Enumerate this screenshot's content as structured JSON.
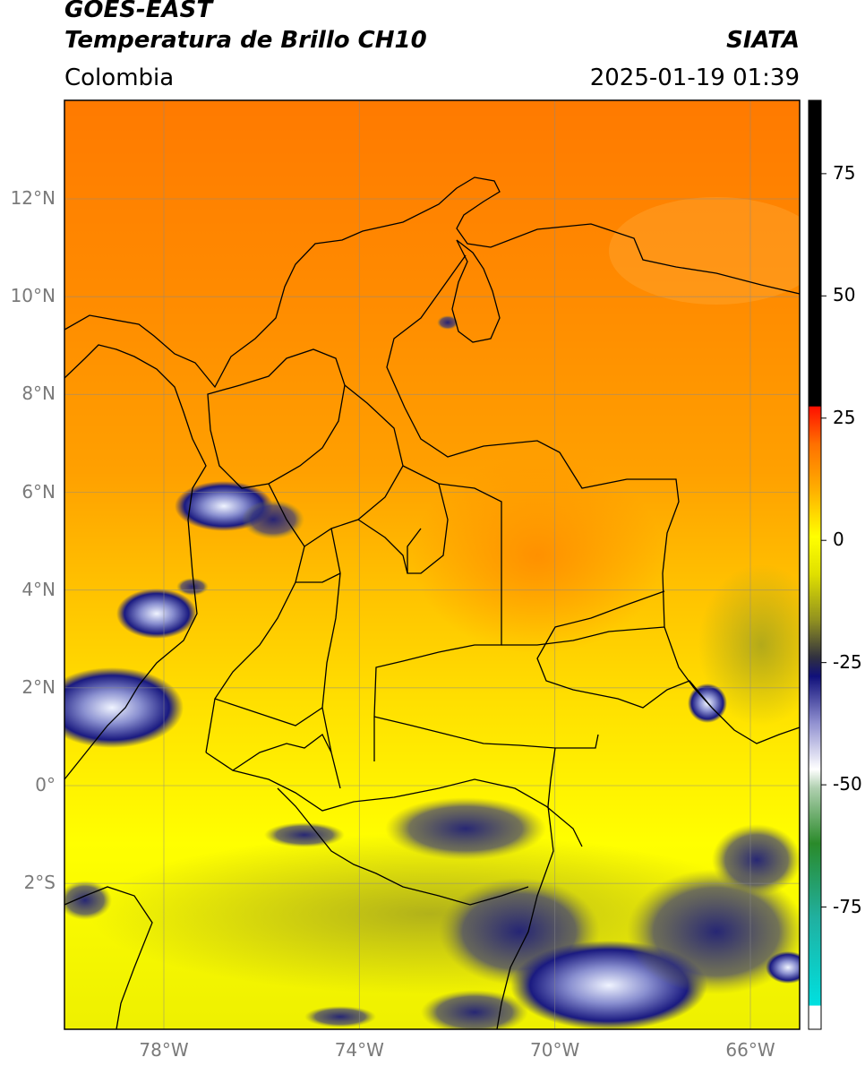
{
  "header": {
    "satellite": "GOES-EAST",
    "product": "Temperatura de Brillo CH10",
    "region": "Colombia",
    "agency": "SIATA",
    "timestamp": "2025-01-19 01:39"
  },
  "map": {
    "lat_ticks": [
      {
        "lat": 12,
        "label": "12°N"
      },
      {
        "lat": 10,
        "label": "10°N"
      },
      {
        "lat": 8,
        "label": "8°N"
      },
      {
        "lat": 6,
        "label": "6°N"
      },
      {
        "lat": 4,
        "label": "4°N"
      },
      {
        "lat": 2,
        "label": "2°N"
      },
      {
        "lat": 0,
        "label": "0°"
      },
      {
        "lat": -2,
        "label": "2°S"
      }
    ],
    "lon_ticks": [
      {
        "lon": -78,
        "label": "78°W"
      },
      {
        "lon": -74,
        "label": "74°W"
      },
      {
        "lon": -70,
        "label": "70°W"
      },
      {
        "lon": -66,
        "label": "66°W"
      }
    ],
    "extent": {
      "lon_min": -80,
      "lon_max": -65,
      "lat_min": -5,
      "lat_max": 14
    }
  },
  "colorbar": {
    "ticks": [
      {
        "value": 75,
        "label": "75"
      },
      {
        "value": 50,
        "label": "50"
      },
      {
        "value": 25,
        "label": "25"
      },
      {
        "value": 0,
        "label": "0"
      },
      {
        "value": -25,
        "label": "-25"
      },
      {
        "value": -50,
        "label": "-50"
      },
      {
        "value": -75,
        "label": "-75"
      }
    ],
    "range": [
      -100,
      90
    ],
    "colors": {
      "black": "#000000",
      "red": "#ff2000",
      "orange": "#ff8c00",
      "yellow": "#ffff00",
      "olive": "#8a8a20",
      "navy": "#10107a",
      "white": "#ffffff",
      "green": "#2e8b2e",
      "cyan": "#00dddd"
    }
  }
}
